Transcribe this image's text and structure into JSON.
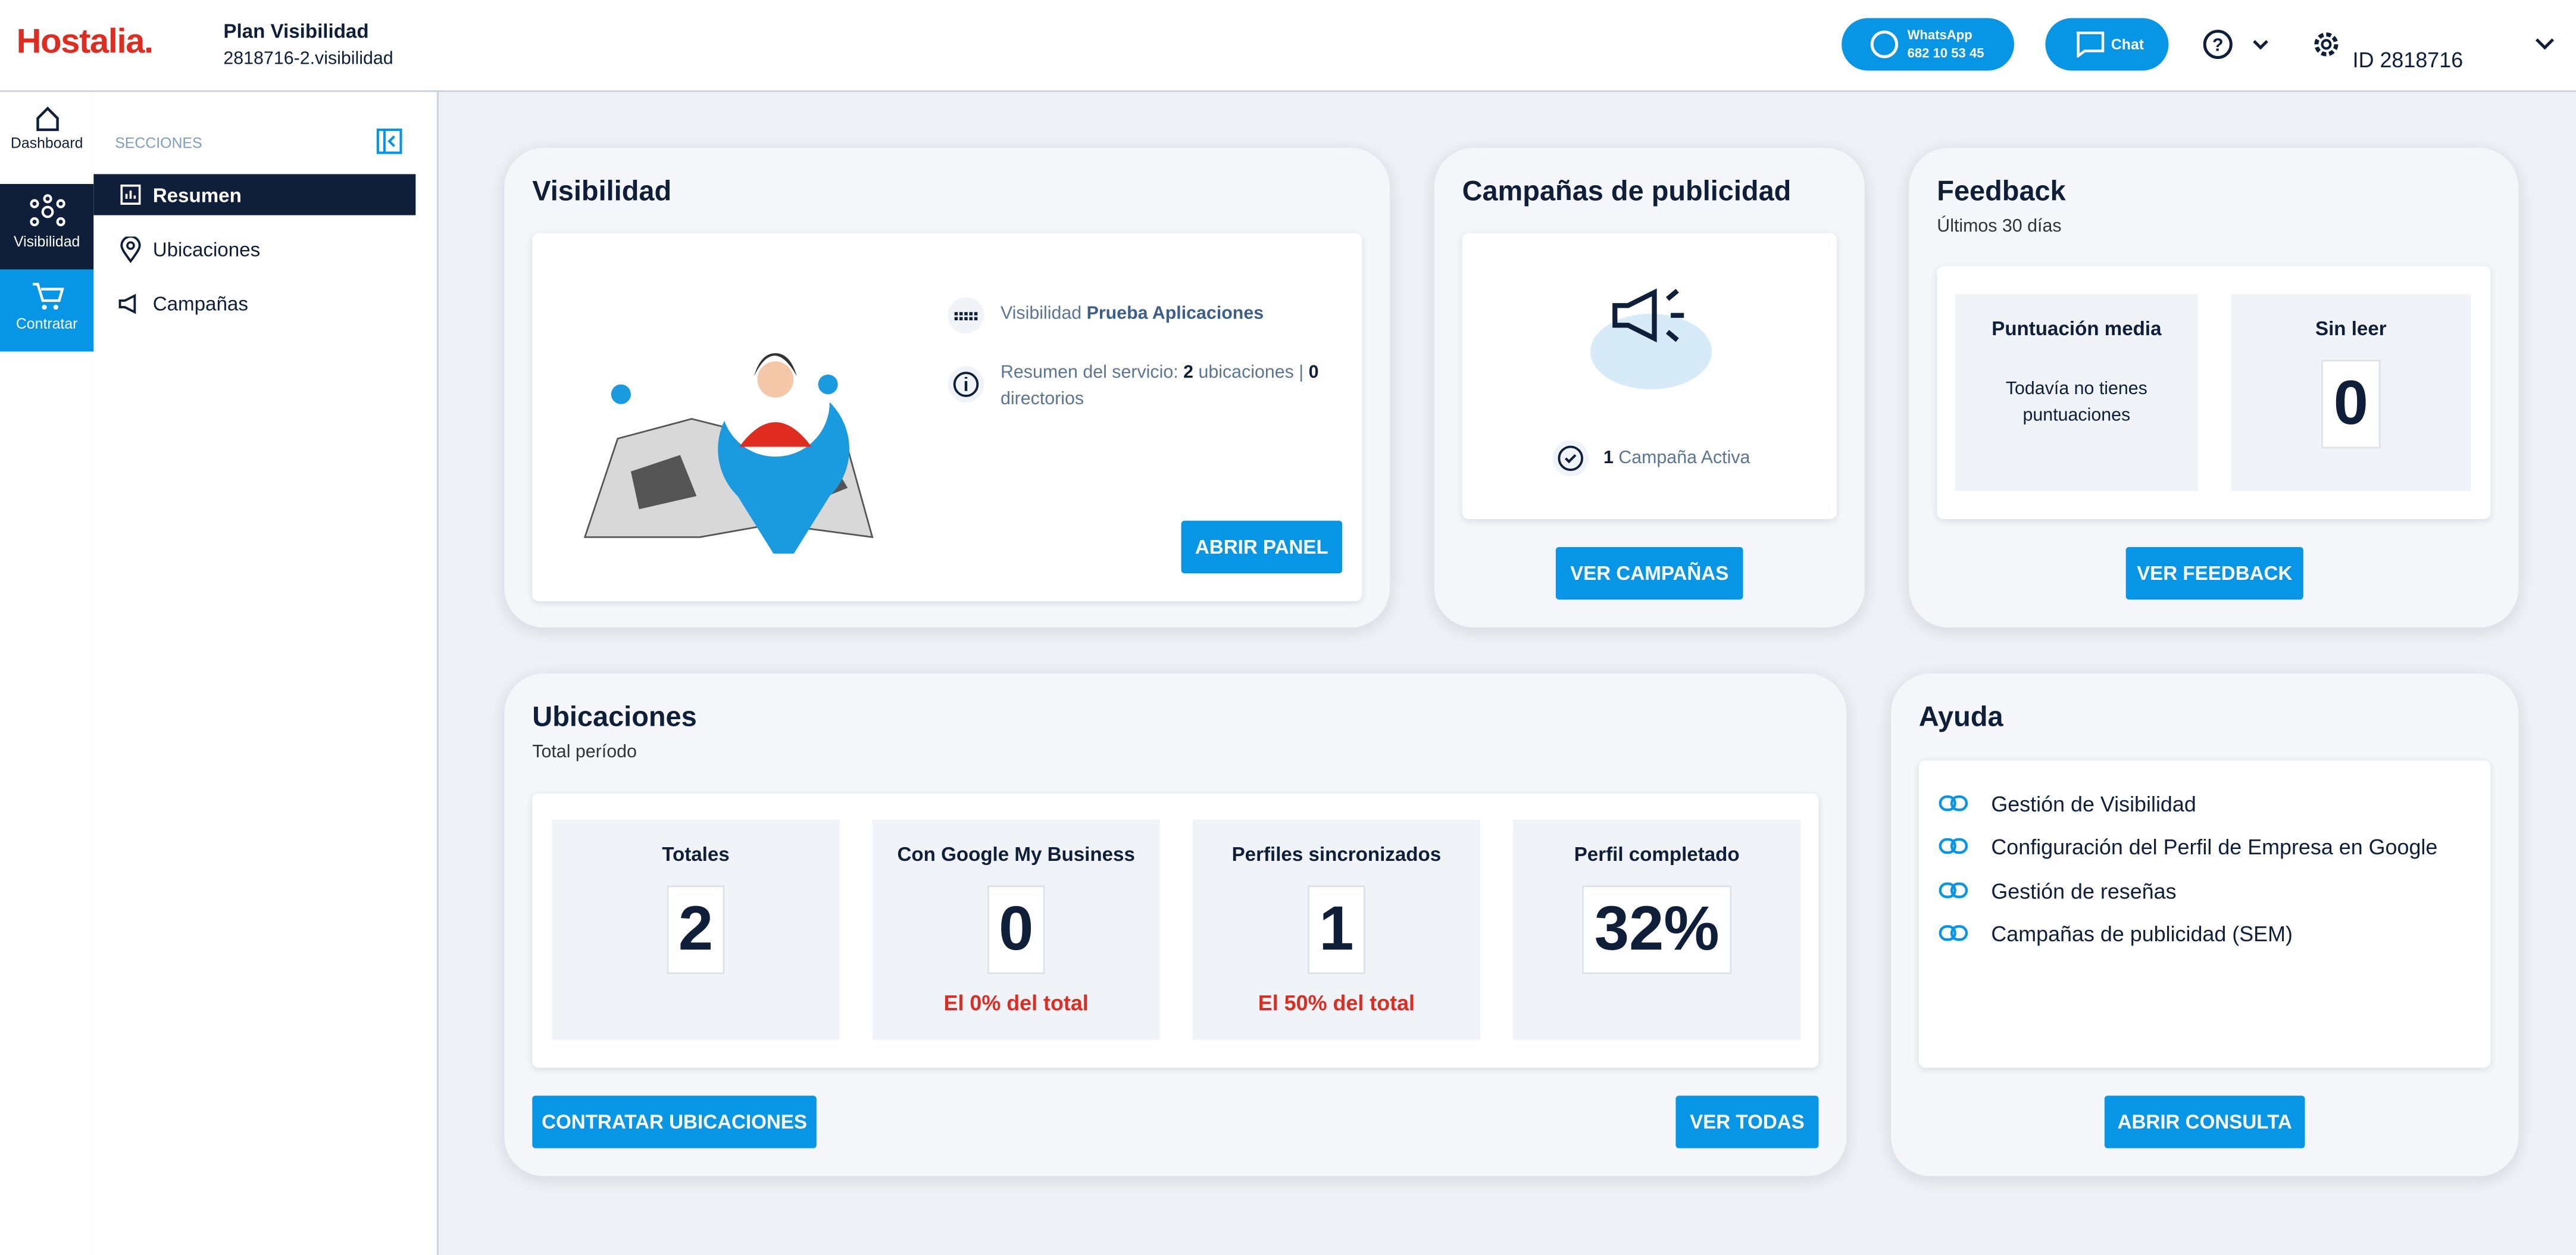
{
  "header": {
    "logo": "Hostalia.",
    "plan": "Plan Visibilidad",
    "domain": "2818716-2.visibilidad",
    "whatsapp_label": "WhatsApp",
    "whatsapp_number": "682 10 53 45",
    "chat": "Chat",
    "account_id": "ID 2818716"
  },
  "nav": [
    "Dashboard",
    "Visibilidad",
    "Contratar"
  ],
  "sidebar": {
    "heading": "SECCIONES",
    "items": [
      "Resumen",
      "Ubicaciones",
      "Campañas"
    ]
  },
  "visibilidad": {
    "title": "Visibilidad",
    "plan_label": "Visibilidad",
    "plan_name": "Prueba Aplicaciones",
    "summary_prefix": "Resumen del servicio:",
    "locations_count": "2",
    "locations_word": "ubicaciones |",
    "directories_count": "0",
    "directories_word": "directorios",
    "button": "ABRIR PANEL"
  },
  "campaigns": {
    "title": "Campañas de publicidad",
    "active_count": "1",
    "active_label": "Campaña Activa",
    "button": "VER CAMPAÑAS"
  },
  "feedback": {
    "title": "Feedback",
    "subtitle": "Últimos 30 días",
    "average_title": "Puntuación media",
    "average_text": "Todavía no tienes puntuaciones",
    "unread_title": "Sin leer",
    "unread_value": "0",
    "button": "VER FEEDBACK"
  },
  "locations": {
    "title": "Ubicaciones",
    "subtitle": "Total período",
    "stats": [
      {
        "label": "Totales",
        "value": "2"
      },
      {
        "label": "Con Google My Business",
        "value": "0",
        "note": "El 0% del total"
      },
      {
        "label": "Perfiles sincronizados",
        "value": "1",
        "note": "El 50% del total"
      },
      {
        "label": "Perfil completado",
        "value": "32%"
      }
    ],
    "buttons": [
      "CONTRATAR UBICACIONES",
      "VER TODAS"
    ]
  },
  "help": {
    "title": "Ayuda",
    "links": [
      "Gestión de Visibilidad",
      "Configuración del Perfil de Empresa en Google",
      "Gestión de reseñas",
      "Campañas de publicidad (SEM)"
    ],
    "button": "ABRIR CONSULTA"
  }
}
